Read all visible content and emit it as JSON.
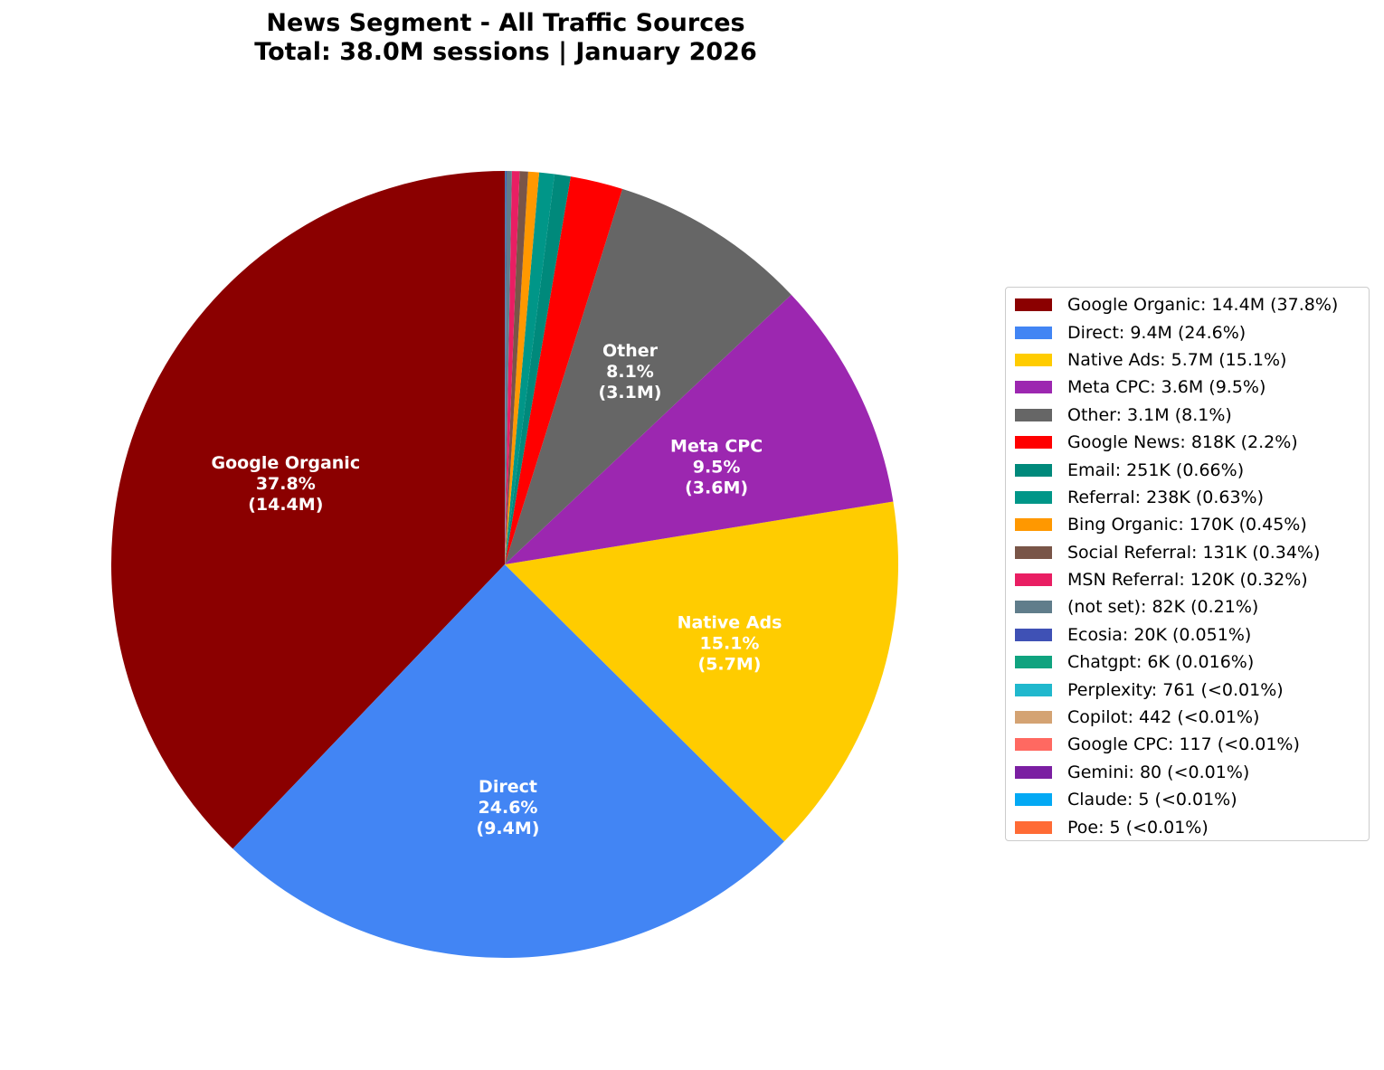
{
  "chart_data": {
    "type": "pie",
    "title": "News Segment - All Traffic Sources",
    "subtitle": "Total: 38.0M sessions | January 2026",
    "start_angle": 90,
    "direction": "counterclockwise",
    "legend_position": "right",
    "slices": [
      {
        "name": "Google Organic",
        "value": 14400000,
        "value_label": "14.4M",
        "percent": 37.8,
        "percent_label": "37.8%",
        "color": "#8b0000",
        "show_label": true,
        "legend": "Google Organic: 14.4M (37.8%)"
      },
      {
        "name": "Direct",
        "value": 9400000,
        "value_label": "9.4M",
        "percent": 24.6,
        "percent_label": "24.6%",
        "color": "#4285f4",
        "show_label": true,
        "legend": "Direct: 9.4M (24.6%)"
      },
      {
        "name": "Native Ads",
        "value": 5700000,
        "value_label": "5.7M",
        "percent": 15.1,
        "percent_label": "15.1%",
        "color": "#ffcc00",
        "show_label": true,
        "legend": "Native Ads: 5.7M (15.1%)"
      },
      {
        "name": "Meta CPC",
        "value": 3600000,
        "value_label": "3.6M",
        "percent": 9.5,
        "percent_label": "9.5%",
        "color": "#9c27b0",
        "show_label": true,
        "legend": "Meta CPC: 3.6M (9.5%)"
      },
      {
        "name": "Other",
        "value": 3100000,
        "value_label": "3.1M",
        "percent": 8.1,
        "percent_label": "8.1%",
        "color": "#666666",
        "show_label": true,
        "legend": "Other: 3.1M (8.1%)"
      },
      {
        "name": "Google News",
        "value": 818000,
        "value_label": "818K",
        "percent": 2.2,
        "percent_label": "2.2%",
        "color": "#ff0000",
        "show_label": false,
        "legend": "Google News: 818K (2.2%)"
      },
      {
        "name": "Email",
        "value": 251000,
        "value_label": "251K",
        "percent": 0.66,
        "percent_label": "0.66%",
        "color": "#00897b",
        "show_label": false,
        "legend": "Email: 251K (0.66%)"
      },
      {
        "name": "Referral",
        "value": 238000,
        "value_label": "238K",
        "percent": 0.63,
        "percent_label": "0.63%",
        "color": "#009688",
        "show_label": false,
        "legend": "Referral: 238K (0.63%)"
      },
      {
        "name": "Bing Organic",
        "value": 170000,
        "value_label": "170K",
        "percent": 0.45,
        "percent_label": "0.45%",
        "color": "#ff9800",
        "show_label": false,
        "legend": "Bing Organic: 170K (0.45%)"
      },
      {
        "name": "Social Referral",
        "value": 131000,
        "value_label": "131K",
        "percent": 0.34,
        "percent_label": "0.34%",
        "color": "#795548",
        "show_label": false,
        "legend": "Social Referral: 131K (0.34%)"
      },
      {
        "name": "MSN Referral",
        "value": 120000,
        "value_label": "120K",
        "percent": 0.32,
        "percent_label": "0.32%",
        "color": "#e91e63",
        "show_label": false,
        "legend": "MSN Referral: 120K (0.32%)"
      },
      {
        "name": "(not set)",
        "value": 82000,
        "value_label": "82K",
        "percent": 0.21,
        "percent_label": "0.21%",
        "color": "#607d8b",
        "show_label": false,
        "legend": "(not set): 82K (0.21%)"
      },
      {
        "name": "Ecosia",
        "value": 20000,
        "value_label": "20K",
        "percent": 0.051,
        "percent_label": "0.051%",
        "color": "#3f51b5",
        "show_label": false,
        "legend": "Ecosia: 20K (0.051%)"
      },
      {
        "name": "Chatgpt",
        "value": 6000,
        "value_label": "6K",
        "percent": 0.016,
        "percent_label": "0.016%",
        "color": "#10a37f",
        "show_label": false,
        "legend": "Chatgpt: 6K (0.016%)"
      },
      {
        "name": "Perplexity",
        "value": 761,
        "value_label": "761",
        "percent": 0.002,
        "percent_label": "<0.01%",
        "color": "#20b8cd",
        "show_label": false,
        "legend": "Perplexity: 761 (<0.01%)"
      },
      {
        "name": "Copilot",
        "value": 442,
        "value_label": "442",
        "percent": 0.001,
        "percent_label": "<0.01%",
        "color": "#d4a373",
        "show_label": false,
        "legend": "Copilot: 442 (<0.01%)"
      },
      {
        "name": "Google CPC",
        "value": 117,
        "value_label": "117",
        "percent": 0.0003,
        "percent_label": "<0.01%",
        "color": "#ff6961",
        "show_label": false,
        "legend": "Google CPC: 117 (<0.01%)"
      },
      {
        "name": "Gemini",
        "value": 80,
        "value_label": "80",
        "percent": 0.0002,
        "percent_label": "<0.01%",
        "color": "#7b1fa2",
        "show_label": false,
        "legend": "Gemini: 80 (<0.01%)"
      },
      {
        "name": "Claude",
        "value": 5,
        "value_label": "5",
        "percent": 1e-05,
        "percent_label": "<0.01%",
        "color": "#03a9f4",
        "show_label": false,
        "legend": "Claude: 5 (<0.01%)"
      },
      {
        "name": "Poe",
        "value": 5,
        "value_label": "5",
        "percent": 1e-05,
        "percent_label": "<0.01%",
        "color": "#ff6b35",
        "show_label": false,
        "legend": "Poe: 5 (<0.01%)"
      }
    ]
  }
}
